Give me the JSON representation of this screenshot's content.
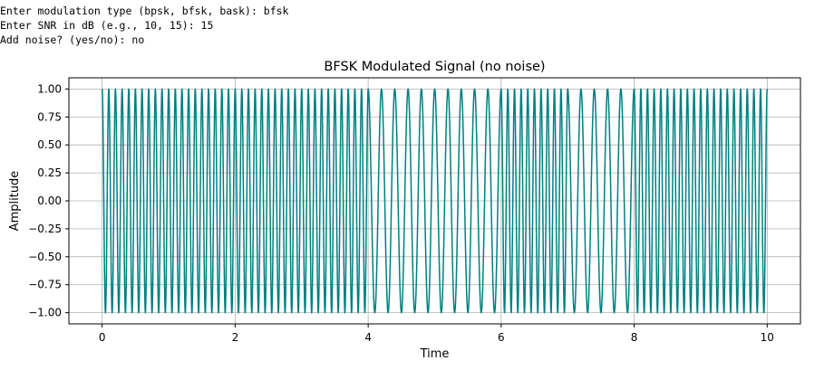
{
  "console": {
    "lines": [
      "Enter modulation type (bpsk, bfsk, bask): bfsk",
      "Enter SNR in dB (e.g., 10, 15): 15",
      "Add noise? (yes/no): no"
    ]
  },
  "chart_data": {
    "type": "line",
    "title": "BFSK Modulated Signal (no noise)",
    "xlabel": "Time",
    "ylabel": "Amplitude",
    "xlim": [
      -0.5,
      10.5
    ],
    "ylim": [
      -1.1,
      1.1
    ],
    "xticks": [
      0,
      2,
      4,
      6,
      8,
      10
    ],
    "xtick_labels": [
      "0",
      "2",
      "4",
      "6",
      "8",
      "10"
    ],
    "yticks": [
      -1.0,
      -0.75,
      -0.5,
      -0.25,
      0.0,
      0.25,
      0.5,
      0.75,
      1.0
    ],
    "ytick_labels": [
      "−1.00",
      "−0.75",
      "−0.50",
      "−0.25",
      "0.00",
      "0.25",
      "0.50",
      "0.75",
      "1.00"
    ],
    "grid": true,
    "line_color": "#008080",
    "signal": {
      "function": "cos",
      "x_start": 0,
      "x_end": 10,
      "segments": [
        {
          "t0": 0,
          "t1": 4,
          "frequency": 10
        },
        {
          "t0": 4,
          "t1": 6,
          "frequency": 5
        },
        {
          "t0": 6,
          "t1": 7,
          "frequency": 10
        },
        {
          "t0": 7,
          "t1": 8,
          "frequency": 5
        },
        {
          "t0": 8,
          "t1": 10,
          "frequency": 10
        }
      ]
    }
  }
}
